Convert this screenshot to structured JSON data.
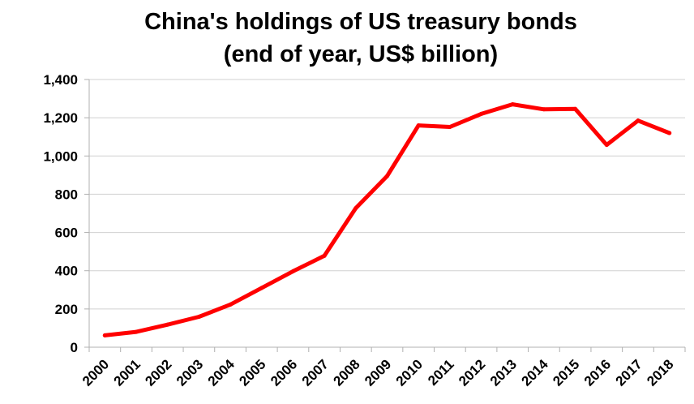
{
  "chart_data": {
    "type": "line",
    "title": "China's holdings of US treasury bonds",
    "subtitle": "(end of year, US$ billion)",
    "xlabel": "",
    "ylabel": "",
    "categories": [
      "2000",
      "2001",
      "2002",
      "2003",
      "2004",
      "2005",
      "2006",
      "2007",
      "2008",
      "2009",
      "2010",
      "2011",
      "2012",
      "2013",
      "2014",
      "2015",
      "2016",
      "2017",
      "2018"
    ],
    "series": [
      {
        "values": [
          62,
          80,
          118,
          159,
          223,
          310,
          397,
          478,
          727,
          895,
          1160,
          1152,
          1220,
          1270,
          1244,
          1246,
          1058,
          1185,
          1120
        ],
        "color": "#ff0000"
      }
    ],
    "ylim": [
      0,
      1400
    ],
    "yticks": [
      0,
      200,
      400,
      600,
      800,
      1000,
      1200,
      1400
    ],
    "ytick_labels": [
      "0",
      "200",
      "400",
      "600",
      "800",
      "1,000",
      "1,200",
      "1,400"
    ],
    "grid": true,
    "legend": "none"
  }
}
